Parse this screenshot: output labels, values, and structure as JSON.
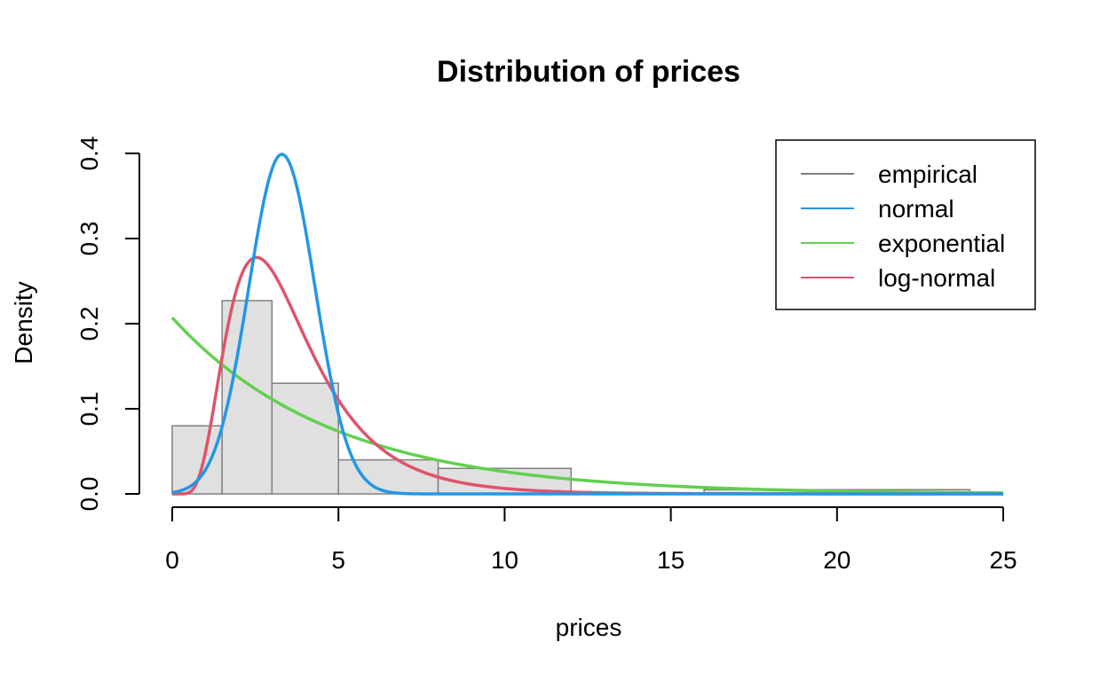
{
  "chart_data": {
    "type": "histogram",
    "title": "Distribution of prices",
    "xlabel": "prices",
    "ylabel": "Density",
    "xlim": [
      0,
      25
    ],
    "ylim": [
      0,
      0.4
    ],
    "x_ticks": [
      0,
      5,
      10,
      15,
      20,
      25
    ],
    "y_ticks": [
      0.0,
      0.1,
      0.2,
      0.3,
      0.4
    ],
    "y_tick_labels": [
      "0.0",
      "0.1",
      "0.2",
      "0.3",
      "0.4"
    ],
    "grid": false,
    "legend_position": "top-right",
    "histogram": {
      "name": "empirical",
      "color": "#808080",
      "fill": "#e0e0e0",
      "bins": [
        {
          "x0": 0,
          "x1": 1.5,
          "density": 0.08
        },
        {
          "x0": 1.5,
          "x1": 3,
          "density": 0.227
        },
        {
          "x0": 3,
          "x1": 5,
          "density": 0.13
        },
        {
          "x0": 5,
          "x1": 8,
          "density": 0.04
        },
        {
          "x0": 8,
          "x1": 12,
          "density": 0.03
        },
        {
          "x0": 12,
          "x1": 16,
          "density": 0.0
        },
        {
          "x0": 16,
          "x1": 24,
          "density": 0.005
        }
      ]
    },
    "series": [
      {
        "name": "normal",
        "color": "#2297e6",
        "dist": "normal",
        "mean": 3.3,
        "sd": 1.0
      },
      {
        "name": "exponential",
        "color": "#61d04f",
        "dist": "exponential",
        "rate": 0.207
      },
      {
        "name": "log-normal",
        "color": "#df536b",
        "dist": "lognormal",
        "meanlog": 1.18,
        "sdlog": 0.5
      }
    ],
    "legend": [
      {
        "label": "empirical",
        "color": "#808080"
      },
      {
        "label": "normal",
        "color": "#2297e6"
      },
      {
        "label": "exponential",
        "color": "#61d04f"
      },
      {
        "label": "log-normal",
        "color": "#df536b"
      }
    ]
  }
}
